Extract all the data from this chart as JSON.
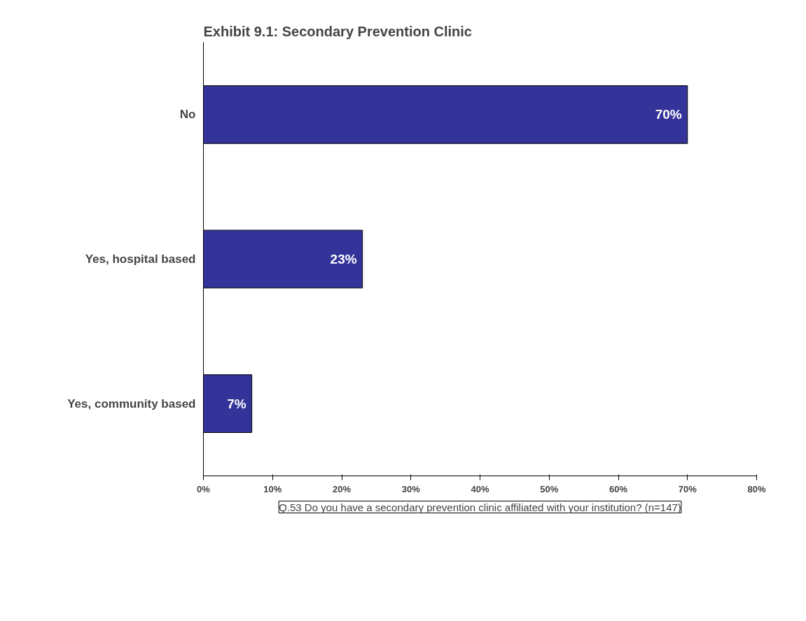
{
  "chart_data": {
    "type": "bar",
    "orientation": "horizontal",
    "title": "Exhibit 9.1: Secondary Prevention Clinic",
    "categories": [
      "No",
      "Yes, hospital based",
      "Yes, community based"
    ],
    "values": [
      70,
      23,
      7
    ],
    "value_labels": [
      "70%",
      "23%",
      "7%"
    ],
    "color": "#333399",
    "xlim": [
      0,
      80
    ],
    "xticks": [
      {
        "value": 0,
        "label": "0%"
      },
      {
        "value": 10,
        "label": "10%"
      },
      {
        "value": 20,
        "label": "20%"
      },
      {
        "value": 30,
        "label": "30%"
      },
      {
        "value": 40,
        "label": "40%"
      },
      {
        "value": 50,
        "label": "50%"
      },
      {
        "value": 60,
        "label": "60%"
      },
      {
        "value": 70,
        "label": "70%"
      },
      {
        "value": 80,
        "label": "80%"
      }
    ],
    "grid": false,
    "annotations": [
      "Q.53 Do you have a secondary prevention clinic affiliated with your institution? (n=147)"
    ]
  }
}
